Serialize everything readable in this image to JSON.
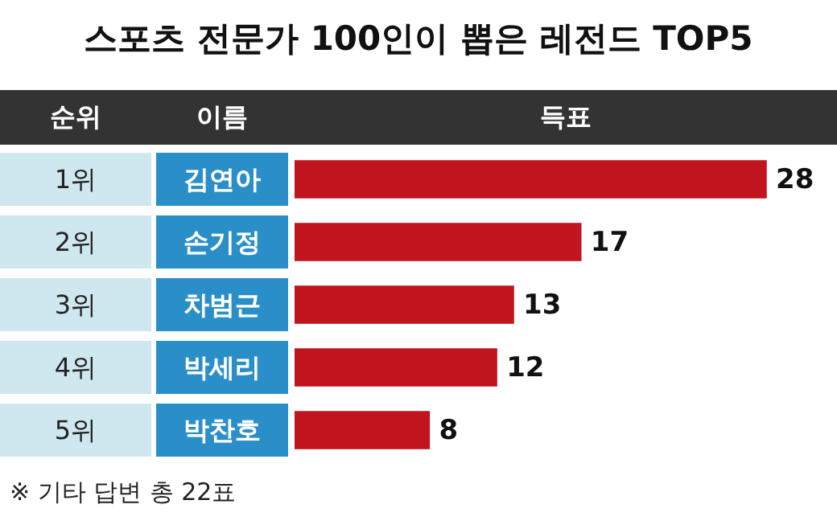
{
  "chart_data": {
    "type": "bar",
    "orientation": "horizontal",
    "title": "스포츠 전문가 100인이 뽑은 레전드 TOP5",
    "ylabel": "이름",
    "xlabel": "득표",
    "categories": [
      "김연아",
      "손기정",
      "차범근",
      "박세리",
      "박찬호"
    ],
    "values": [
      28,
      17,
      13,
      12,
      8
    ],
    "color": "#c0141e",
    "data_labels": true,
    "annotations": [
      "순위",
      "1위",
      "2위",
      "3위",
      "4위",
      "5위",
      "※ 기타 답변 총 22표"
    ]
  }
}
